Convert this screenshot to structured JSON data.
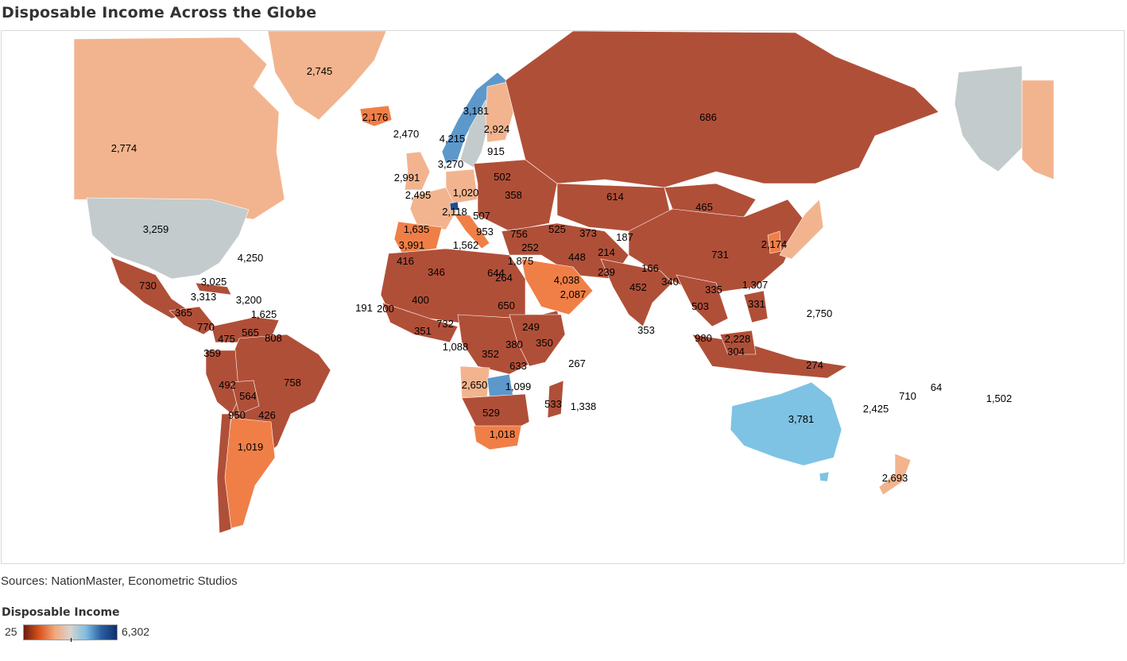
{
  "title": "Disposable Income Across the Globe",
  "source": "Sources: NationMaster, Econometric Studios",
  "legend": {
    "title": "Disposable Income",
    "min": "25",
    "max": "6,302",
    "colors": [
      "#6b1e0f",
      "#d9541c",
      "#f2a77a",
      "#d8d4cf",
      "#7fbde0",
      "#2a5fa0",
      "#0e2f6b"
    ]
  },
  "map": {
    "colors": {
      "low": "#b04f38",
      "orange": "#f07f47",
      "peach": "#f2b48e",
      "gray": "#c3cbcd",
      "lightblue": "#7ec3e3",
      "blue": "#5d98cb",
      "darkblue": "#1f4e8c"
    },
    "values": [
      "2,745",
      "2,774",
      "3,259",
      "4,250",
      "2,176",
      "2,470",
      "3,181",
      "4,215",
      "2,924",
      "915",
      "3,270",
      "2,991",
      "2,495",
      "1,020",
      "502",
      "358",
      "2,118",
      "507",
      "1,635",
      "953",
      "3,991",
      "1,562",
      "756",
      "252",
      "1,875",
      "525",
      "373",
      "187",
      "614",
      "465",
      "686",
      "2,174",
      "731",
      "448",
      "214",
      "166",
      "239",
      "4,038",
      "2,087",
      "452",
      "340",
      "335",
      "1,307",
      "331",
      "503",
      "353",
      "416",
      "346",
      "644",
      "264",
      "400",
      "650",
      "191",
      "200",
      "351",
      "732",
      "1,088",
      "249",
      "380",
      "352",
      "350",
      "633",
      "267",
      "2,650",
      "1,099",
      "533",
      "1,338",
      "529",
      "1,018",
      "730",
      "3,025",
      "3,313",
      "3,200",
      "365",
      "1,625",
      "770",
      "565",
      "475",
      "808",
      "359",
      "758",
      "492",
      "564",
      "950",
      "426",
      "1,019",
      "980",
      "2,228",
      "304",
      "274",
      "2,750",
      "3,781",
      "2,425",
      "710",
      "64",
      "1,502",
      "2,693"
    ]
  }
}
